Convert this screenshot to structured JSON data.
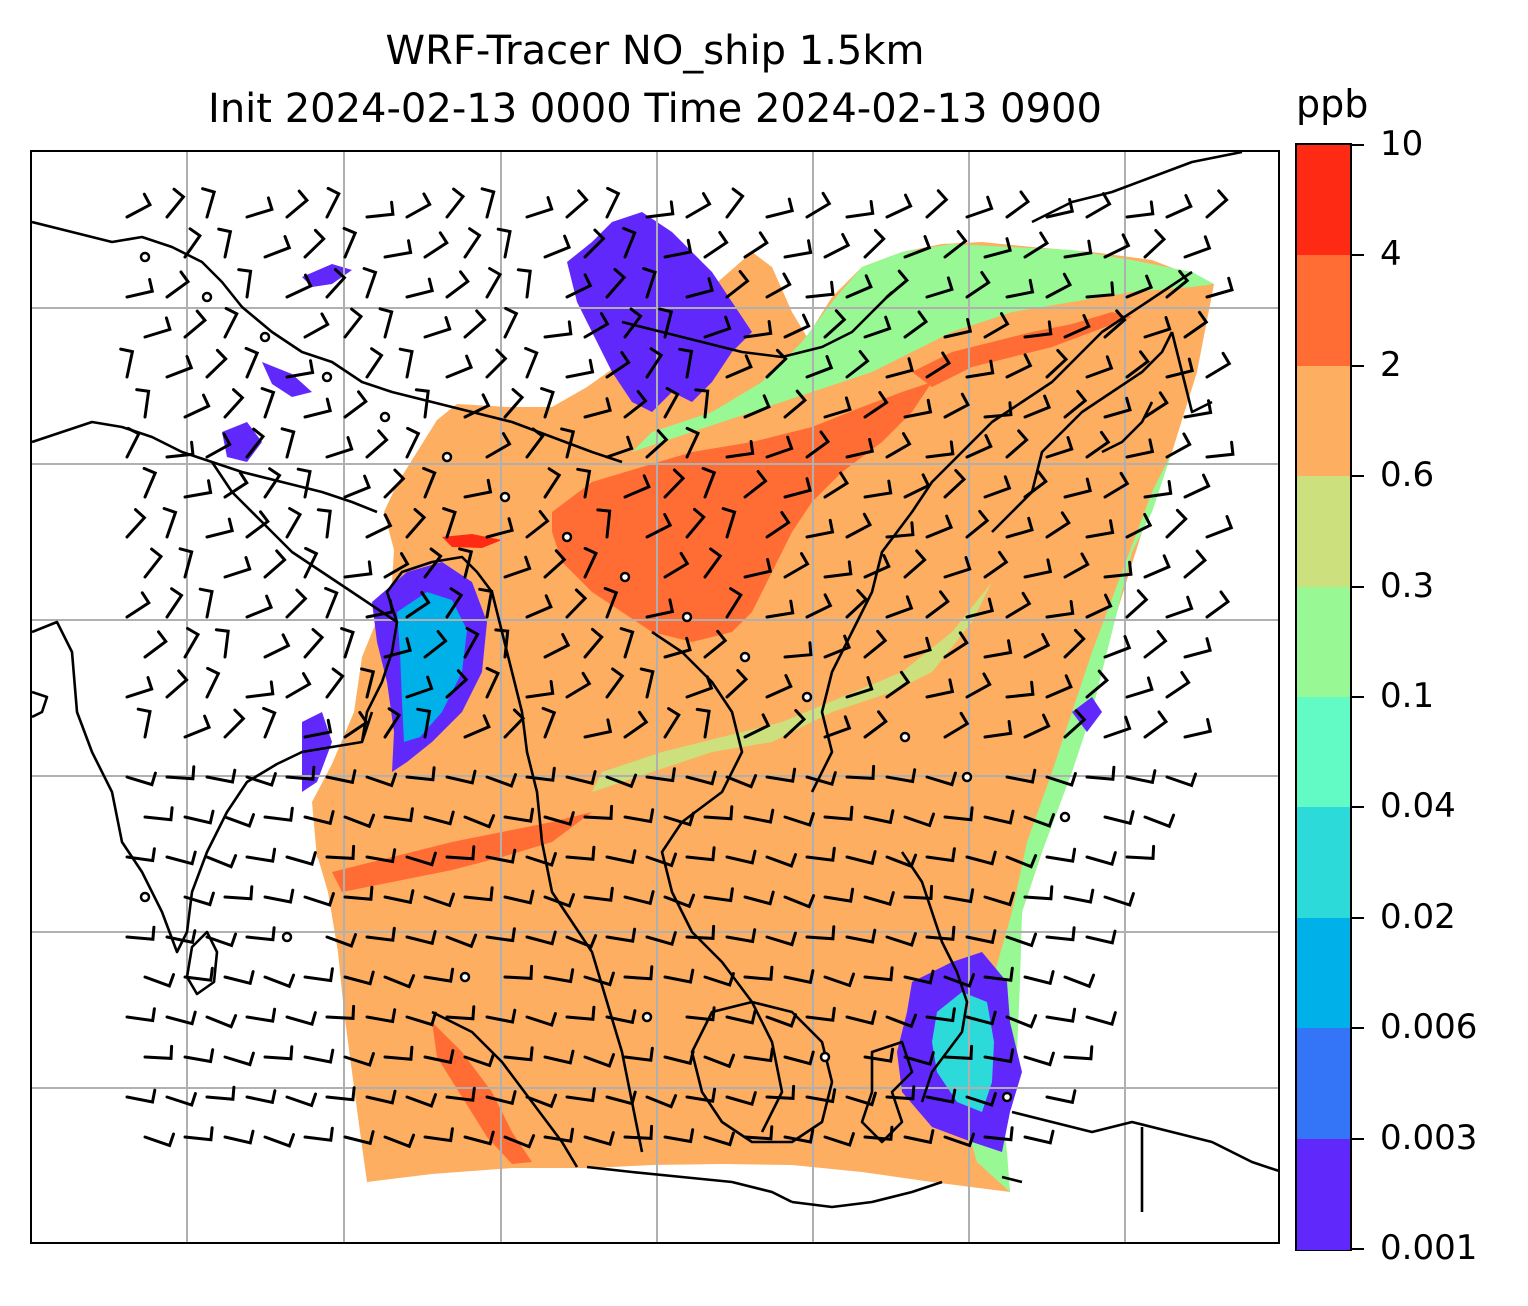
{
  "title": {
    "line1": "WRF-Tracer NO_ship 1.5km",
    "line2": "Init 2024-02-13 0000 Time 2024-02-13 0900"
  },
  "colorbar": {
    "unit": "ppb",
    "levels": [
      "10",
      "4",
      "2",
      "0.6",
      "0.3",
      "0.1",
      "0.04",
      "0.02",
      "0.006",
      "0.003",
      "0.001"
    ],
    "colors": [
      "#ff2a14",
      "#ff6d35",
      "#fdae61",
      "#cde07e",
      "#97f894",
      "#62fbc5",
      "#2cdbd9",
      "#00b1e9",
      "#3375f6",
      "#6128fc"
    ]
  },
  "map": {
    "background_color": "#ffffff",
    "gridline_color": "#b0b0b0",
    "coastline_color": "#000000",
    "wind_barb_color": "#000000"
  }
}
